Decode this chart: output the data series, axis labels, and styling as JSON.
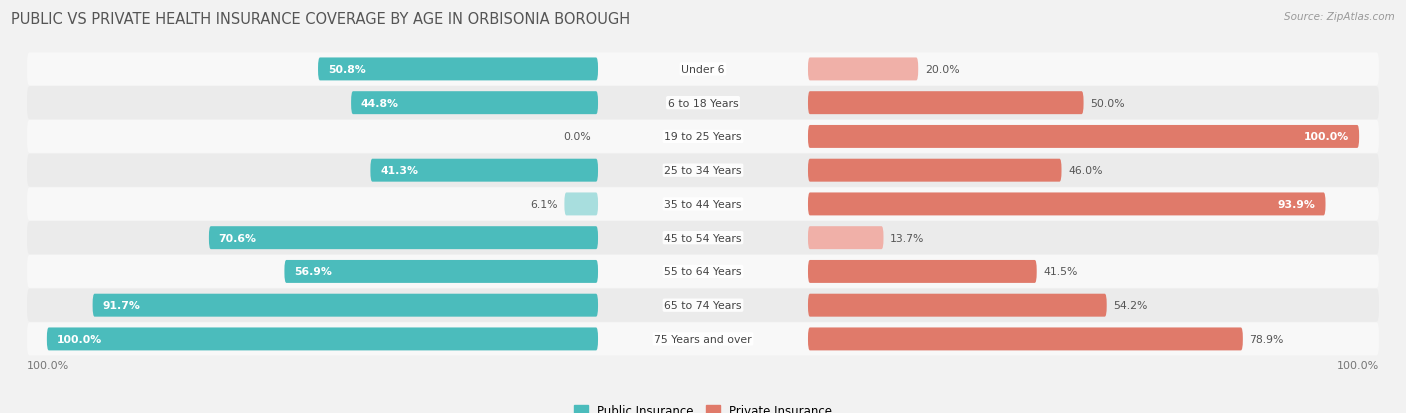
{
  "title": "PUBLIC VS PRIVATE HEALTH INSURANCE COVERAGE BY AGE IN ORBISONIA BOROUGH",
  "source": "Source: ZipAtlas.com",
  "categories": [
    "Under 6",
    "6 to 18 Years",
    "19 to 25 Years",
    "25 to 34 Years",
    "35 to 44 Years",
    "45 to 54 Years",
    "55 to 64 Years",
    "65 to 74 Years",
    "75 Years and over"
  ],
  "public_values": [
    50.8,
    44.8,
    0.0,
    41.3,
    6.1,
    70.6,
    56.9,
    91.7,
    100.0
  ],
  "private_values": [
    20.0,
    50.0,
    100.0,
    46.0,
    93.9,
    13.7,
    41.5,
    54.2,
    78.9
  ],
  "public_color": "#4bbcbc",
  "public_color_light": "#a8dede",
  "private_color": "#e07a6a",
  "private_color_light": "#f0b0a8",
  "public_label": "Public Insurance",
  "private_label": "Private Insurance",
  "bg_color": "#f2f2f2",
  "row_color_odd": "#f8f8f8",
  "row_color_even": "#ebebeb",
  "max_value": 100.0,
  "title_fontsize": 10.5,
  "bar_fontsize": 7.8,
  "cat_fontsize": 7.8,
  "source_fontsize": 7.5,
  "legend_fontsize": 8.5
}
